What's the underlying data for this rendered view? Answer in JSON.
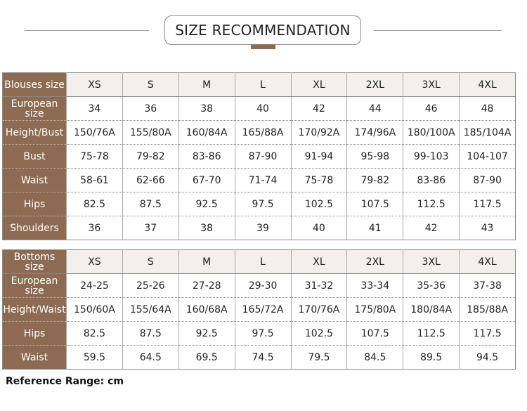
{
  "title": "SIZE RECOMMENDATION",
  "colors": {
    "accent": "#8d6a52",
    "header_bg": "#f3efeb"
  },
  "blouses": {
    "label": "Blouses size",
    "sizes": [
      "XS",
      "S",
      "M",
      "L",
      "XL",
      "2XL",
      "3XL",
      "4XL"
    ],
    "rows": [
      {
        "label": "European size",
        "values": [
          "34",
          "36",
          "38",
          "40",
          "42",
          "44",
          "46",
          "48"
        ]
      },
      {
        "label": "Height/Bust",
        "values": [
          "150/76A",
          "155/80A",
          "160/84A",
          "165/88A",
          "170/92A",
          "174/96A",
          "180/100A",
          "185/104A"
        ]
      },
      {
        "label": "Bust",
        "values": [
          "75-78",
          "79-82",
          "83-86",
          "87-90",
          "91-94",
          "95-98",
          "99-103",
          "104-107"
        ]
      },
      {
        "label": "Waist",
        "values": [
          "58-61",
          "62-66",
          "67-70",
          "71-74",
          "75-78",
          "79-82",
          "83-86",
          "87-90"
        ]
      },
      {
        "label": "Hips",
        "values": [
          "82.5",
          "87.5",
          "92.5",
          "97.5",
          "102.5",
          "107.5",
          "112.5",
          "117.5"
        ]
      },
      {
        "label": "Shoulders",
        "values": [
          "36",
          "37",
          "38",
          "39",
          "40",
          "41",
          "42",
          "43"
        ]
      }
    ]
  },
  "bottoms": {
    "label": "Bottoms size",
    "sizes": [
      "XS",
      "S",
      "M",
      "L",
      "XL",
      "2XL",
      "3XL",
      "4XL"
    ],
    "rows": [
      {
        "label": "European size",
        "values": [
          "24-25",
          "25-26",
          "27-28",
          "29-30",
          "31-32",
          "33-34",
          "35-36",
          "37-38"
        ]
      },
      {
        "label": "Height/Waist",
        "values": [
          "150/60A",
          "155/64A",
          "160/68A",
          "165/72A",
          "170/76A",
          "175/80A",
          "180/84A",
          "185/88A"
        ]
      },
      {
        "label": "Hips",
        "values": [
          "82.5",
          "87.5",
          "92.5",
          "97.5",
          "102.5",
          "107.5",
          "112.5",
          "117.5"
        ]
      },
      {
        "label": "Waist",
        "values": [
          "59.5",
          "64.5",
          "69.5",
          "74.5",
          "79.5",
          "84.5",
          "89.5",
          "94.5"
        ]
      }
    ]
  },
  "footer": "Reference Range: cm"
}
